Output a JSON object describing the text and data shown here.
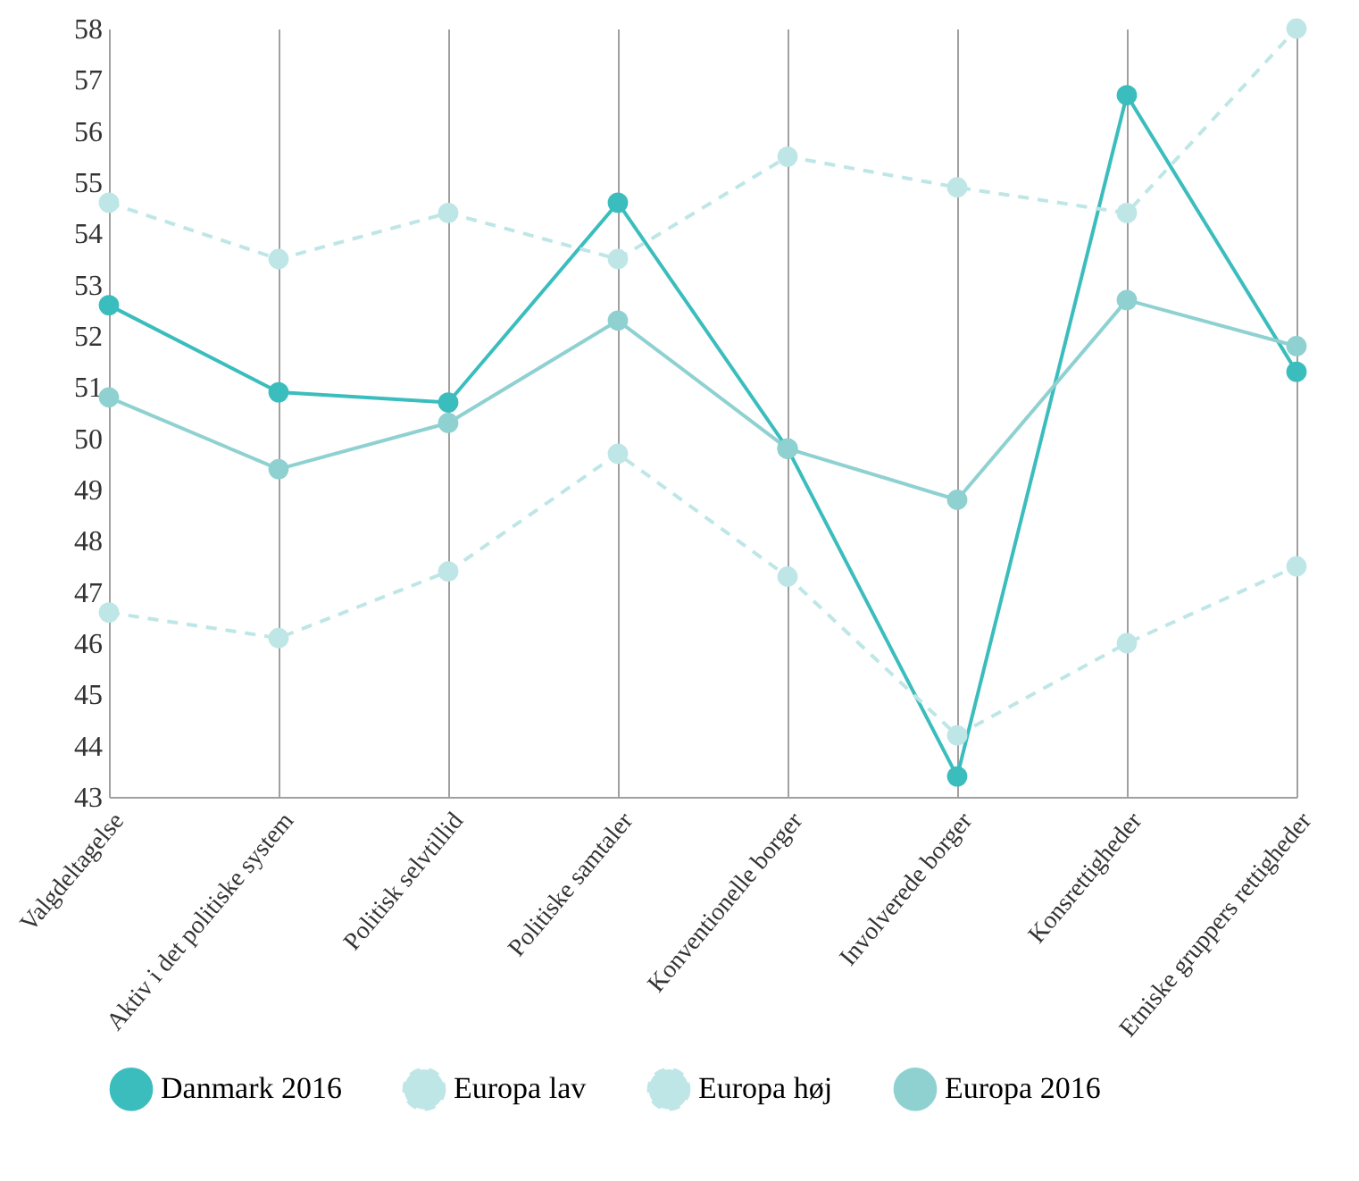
{
  "chart_data": {
    "type": "line",
    "categories": [
      "Valgdeltagelse",
      "Aktiv i det politiske system",
      "Politisk selvtillid",
      "Politiske samtaler",
      "Konventionelle borger",
      "Involverede borger",
      "Konsrettigheder",
      "Etniske gruppers rettigheder"
    ],
    "series": [
      {
        "name": "Danmark 2016",
        "color": "#3bbdbd",
        "line_style": "solid",
        "values": [
          52.6,
          50.9,
          50.7,
          54.6,
          49.8,
          43.4,
          56.7,
          51.3
        ]
      },
      {
        "name": "Europa lav",
        "color": "#bfe6e6",
        "line_style": "dashed",
        "values": [
          46.6,
          46.1,
          47.4,
          49.7,
          47.3,
          44.2,
          46.0,
          47.5
        ]
      },
      {
        "name": "Europa høj",
        "color": "#bfe6e6",
        "line_style": "dashed",
        "values": [
          54.6,
          53.5,
          54.4,
          53.5,
          55.5,
          54.9,
          54.4,
          58.0
        ]
      },
      {
        "name": "Europa 2016",
        "color": "#8fd1d1",
        "line_style": "solid",
        "values": [
          50.8,
          49.4,
          50.3,
          52.3,
          49.8,
          48.8,
          52.7,
          51.8
        ]
      }
    ],
    "ylim": [
      43,
      58
    ],
    "yticks": [
      43,
      44,
      45,
      46,
      47,
      48,
      49,
      50,
      51,
      52,
      53,
      54,
      55,
      56,
      57,
      58
    ],
    "grid": "x",
    "legend": "bottom",
    "marker": "circle"
  }
}
